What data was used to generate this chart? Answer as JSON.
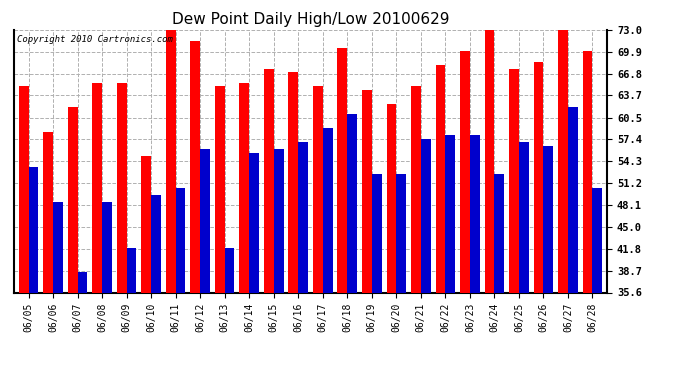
{
  "title": "Dew Point Daily High/Low 20100629",
  "copyright": "Copyright 2010 Cartronics.com",
  "dates": [
    "06/05",
    "06/06",
    "06/07",
    "06/08",
    "06/09",
    "06/10",
    "06/11",
    "06/12",
    "06/13",
    "06/14",
    "06/15",
    "06/16",
    "06/17",
    "06/18",
    "06/19",
    "06/20",
    "06/21",
    "06/22",
    "06/23",
    "06/24",
    "06/25",
    "06/26",
    "06/27",
    "06/28"
  ],
  "highs": [
    65.0,
    58.5,
    62.0,
    65.5,
    65.5,
    55.0,
    73.0,
    71.5,
    65.0,
    65.5,
    67.5,
    67.0,
    65.0,
    70.5,
    64.5,
    62.5,
    65.0,
    68.0,
    70.0,
    73.0,
    67.5,
    68.5,
    73.0,
    70.0
  ],
  "lows": [
    53.5,
    48.5,
    38.5,
    48.5,
    42.0,
    49.5,
    50.5,
    56.0,
    42.0,
    55.5,
    56.0,
    57.0,
    59.0,
    61.0,
    52.5,
    52.5,
    57.5,
    58.0,
    58.0,
    52.5,
    57.0,
    56.5,
    62.0,
    50.5
  ],
  "y_ticks": [
    35.6,
    38.7,
    41.8,
    45.0,
    48.1,
    51.2,
    54.3,
    57.4,
    60.5,
    63.7,
    66.8,
    69.9,
    73.0
  ],
  "y_min": 35.6,
  "y_max": 73.0,
  "high_color": "#ff0000",
  "low_color": "#0000cc",
  "bg_color": "#ffffff",
  "grid_color": "#b0b0b0",
  "title_fontsize": 11,
  "bar_width": 0.4
}
